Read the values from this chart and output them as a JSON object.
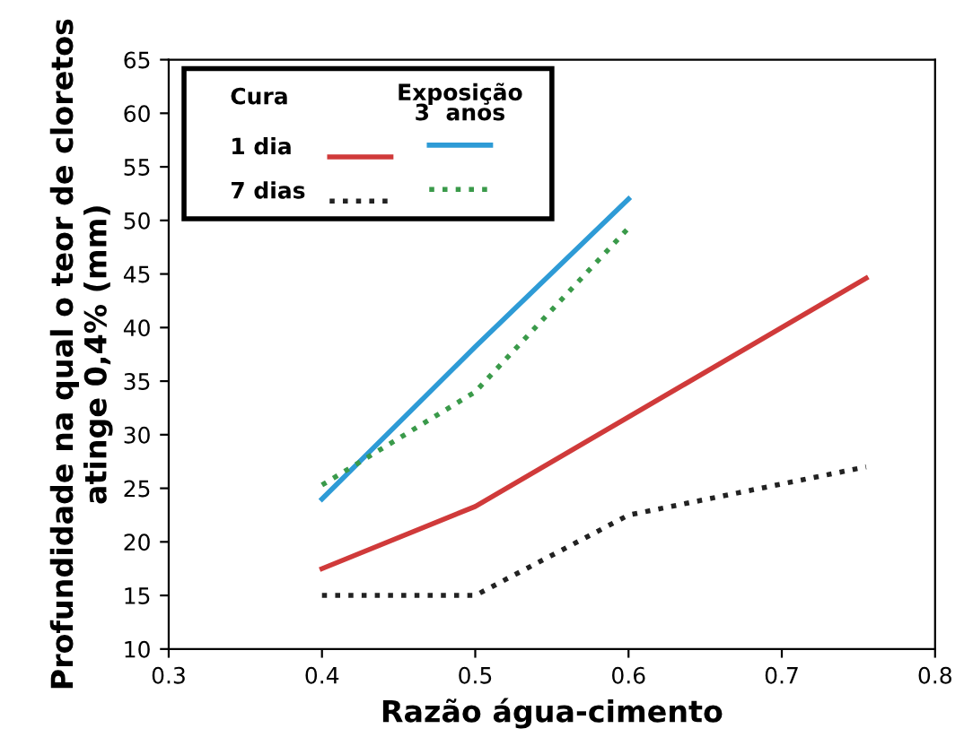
{
  "chart_data": {
    "type": "line",
    "xlabel": "Razão água-cimento",
    "ylabel": "Profundidade na qual o teor de cloretos\natinge 0,4% (mm)",
    "xlim": [
      0.3,
      0.8
    ],
    "xticks": [
      {
        "value": 0.3,
        "label": "0.3"
      },
      {
        "value": 0.4,
        "label": "0.4"
      },
      {
        "value": 0.5,
        "label": "0.5"
      },
      {
        "value": 0.6,
        "label": "0.6"
      },
      {
        "value": 0.7,
        "label": "0.7"
      },
      {
        "value": 0.8,
        "label": "0.8"
      }
    ],
    "ylim": [
      10,
      65
    ],
    "yticks": [
      10,
      15,
      20,
      25,
      30,
      35,
      40,
      45,
      50,
      55,
      60,
      65
    ],
    "grid": false,
    "legend": "top left",
    "annotations": [
      "Cura",
      "Exposição\n3  anos"
    ],
    "series": [
      {
        "name": "1 dia",
        "color": "#d03a3a",
        "line_style": "solid",
        "x": [
          0.4,
          0.5,
          0.755
        ],
        "values": [
          17.5,
          23.3,
          44.6
        ]
      },
      {
        "name": "7 dias",
        "color": "#222222",
        "line_style": "dotted",
        "x": [
          0.4,
          0.5,
          0.6,
          0.755
        ],
        "values": [
          15,
          15,
          22.5,
          27
        ]
      },
      {
        "color": "#2e9bd6",
        "line_style": "solid",
        "x": [
          0.4,
          0.5,
          0.6
        ],
        "values": [
          24,
          38.2,
          52
        ]
      },
      {
        "color": "#3a9a4a",
        "line_style": "dotted",
        "x": [
          0.4,
          0.5,
          0.6
        ],
        "values": [
          25.3,
          34,
          49.3
        ]
      }
    ]
  }
}
